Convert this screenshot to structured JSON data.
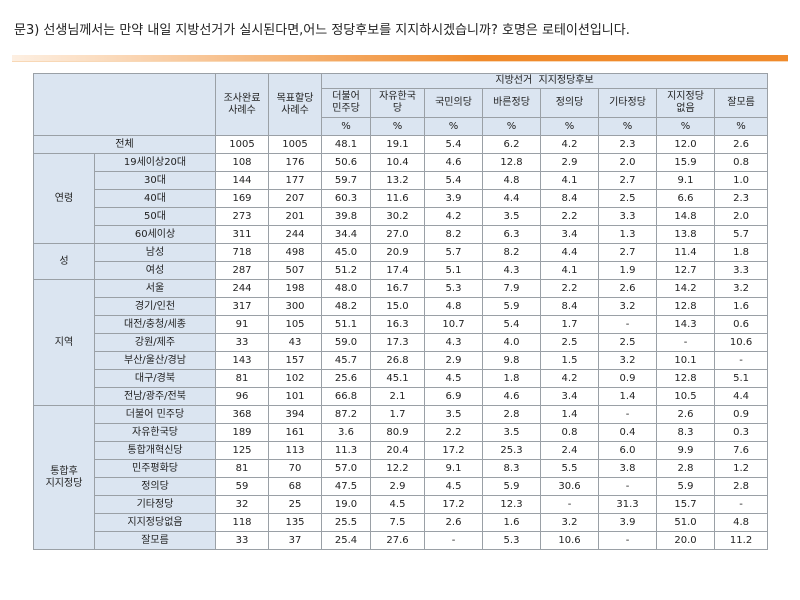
{
  "question": "문3) 선생님께서는 만약 내일 지방선거가 실시된다면,어느 정당후보를 지지하시겠습니까? 호명은 로테이션입니다.",
  "colors": {
    "header_bg": "#dbe5f1",
    "accent": "#f08a2b",
    "border": "#9aa0a6"
  },
  "table": {
    "col_sample": "조사완료\n사례수",
    "col_target": "목표할당\n사례수",
    "group_header": "지방선거  지지정당후보",
    "parties": [
      "더불어\n민주당",
      "자유한국\n당",
      "국민의당",
      "바른정당",
      "정의당",
      "기타정당",
      "지지정당\n없음",
      "잘모름"
    ],
    "unit": "%",
    "total": {
      "label": "전체",
      "values": [
        "1005",
        "1005",
        "48.1",
        "19.1",
        "5.4",
        "6.2",
        "4.2",
        "2.3",
        "12.0",
        "2.6"
      ]
    },
    "groups": [
      {
        "name": "연령",
        "rows": [
          {
            "label": "19세이상20대",
            "values": [
              "108",
              "176",
              "50.6",
              "10.4",
              "4.6",
              "12.8",
              "2.9",
              "2.0",
              "15.9",
              "0.8"
            ]
          },
          {
            "label": "30대",
            "values": [
              "144",
              "177",
              "59.7",
              "13.2",
              "5.4",
              "4.8",
              "4.1",
              "2.7",
              "9.1",
              "1.0"
            ]
          },
          {
            "label": "40대",
            "values": [
              "169",
              "207",
              "60.3",
              "11.6",
              "3.9",
              "4.4",
              "8.4",
              "2.5",
              "6.6",
              "2.3"
            ]
          },
          {
            "label": "50대",
            "values": [
              "273",
              "201",
              "39.8",
              "30.2",
              "4.2",
              "3.5",
              "2.2",
              "3.3",
              "14.8",
              "2.0"
            ]
          },
          {
            "label": "60세이상",
            "values": [
              "311",
              "244",
              "34.4",
              "27.0",
              "8.2",
              "6.3",
              "3.4",
              "1.3",
              "13.8",
              "5.7"
            ]
          }
        ]
      },
      {
        "name": "성",
        "rows": [
          {
            "label": "남성",
            "values": [
              "718",
              "498",
              "45.0",
              "20.9",
              "5.7",
              "8.2",
              "4.4",
              "2.7",
              "11.4",
              "1.8"
            ]
          },
          {
            "label": "여성",
            "values": [
              "287",
              "507",
              "51.2",
              "17.4",
              "5.1",
              "4.3",
              "4.1",
              "1.9",
              "12.7",
              "3.3"
            ]
          }
        ]
      },
      {
        "name": "지역",
        "rows": [
          {
            "label": "서울",
            "values": [
              "244",
              "198",
              "48.0",
              "16.7",
              "5.3",
              "7.9",
              "2.2",
              "2.6",
              "14.2",
              "3.2"
            ]
          },
          {
            "label": "경기/인천",
            "values": [
              "317",
              "300",
              "48.2",
              "15.0",
              "4.8",
              "5.9",
              "8.4",
              "3.2",
              "12.8",
              "1.6"
            ]
          },
          {
            "label": "대전/충청/세종",
            "values": [
              "91",
              "105",
              "51.1",
              "16.3",
              "10.7",
              "5.4",
              "1.7",
              "-",
              "14.3",
              "0.6"
            ]
          },
          {
            "label": "강원/제주",
            "values": [
              "33",
              "43",
              "59.0",
              "17.3",
              "4.3",
              "4.0",
              "2.5",
              "2.5",
              "-",
              "10.6"
            ]
          },
          {
            "label": "부산/울산/경남",
            "values": [
              "143",
              "157",
              "45.7",
              "26.8",
              "2.9",
              "9.8",
              "1.5",
              "3.2",
              "10.1",
              "-"
            ]
          },
          {
            "label": "대구/경북",
            "values": [
              "81",
              "102",
              "25.6",
              "45.1",
              "4.5",
              "1.8",
              "4.2",
              "0.9",
              "12.8",
              "5.1"
            ]
          },
          {
            "label": "전남/광주/전북",
            "values": [
              "96",
              "101",
              "66.8",
              "2.1",
              "6.9",
              "4.6",
              "3.4",
              "1.4",
              "10.5",
              "4.4"
            ]
          }
        ]
      },
      {
        "name": "통합후\n지지정당",
        "rows": [
          {
            "label": "더불어 민주당",
            "values": [
              "368",
              "394",
              "87.2",
              "1.7",
              "3.5",
              "2.8",
              "1.4",
              "-",
              "2.6",
              "0.9"
            ]
          },
          {
            "label": "자유한국당",
            "values": [
              "189",
              "161",
              "3.6",
              "80.9",
              "2.2",
              "3.5",
              "0.8",
              "0.4",
              "8.3",
              "0.3"
            ]
          },
          {
            "label": "통합개혁신당",
            "values": [
              "125",
              "113",
              "11.3",
              "20.4",
              "17.2",
              "25.3",
              "2.4",
              "6.0",
              "9.9",
              "7.6"
            ]
          },
          {
            "label": "민주평화당",
            "values": [
              "81",
              "70",
              "57.0",
              "12.2",
              "9.1",
              "8.3",
              "5.5",
              "3.8",
              "2.8",
              "1.2"
            ]
          },
          {
            "label": "정의당",
            "values": [
              "59",
              "68",
              "47.5",
              "2.9",
              "4.5",
              "5.9",
              "30.6",
              "-",
              "5.9",
              "2.8"
            ]
          },
          {
            "label": "기타정당",
            "values": [
              "32",
              "25",
              "19.0",
              "4.5",
              "17.2",
              "12.3",
              "-",
              "31.3",
              "15.7",
              "-"
            ]
          },
          {
            "label": "지지정당없음",
            "values": [
              "118",
              "135",
              "25.5",
              "7.5",
              "2.6",
              "1.6",
              "3.2",
              "3.9",
              "51.0",
              "4.8"
            ]
          },
          {
            "label": "잘모름",
            "values": [
              "33",
              "37",
              "25.4",
              "27.6",
              "-",
              "5.3",
              "10.6",
              "-",
              "20.0",
              "11.2"
            ]
          }
        ]
      }
    ]
  }
}
